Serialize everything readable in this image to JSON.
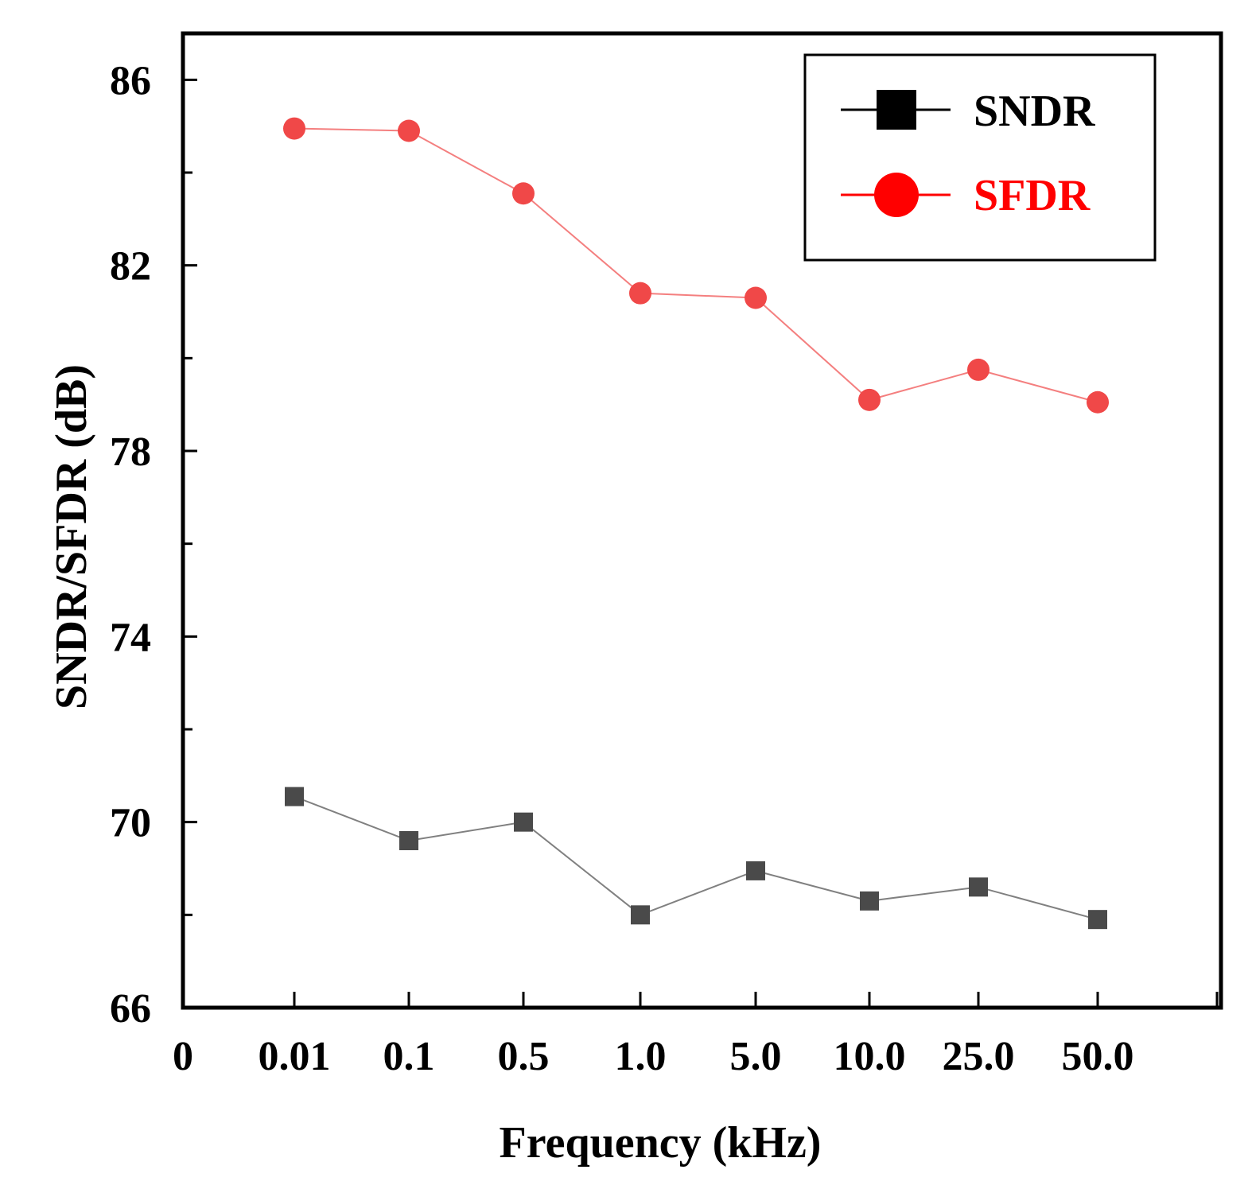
{
  "chart_data": {
    "type": "line",
    "title": "",
    "xlabel": "Frequency (kHz)",
    "ylabel": "SNDR/SFDR (dB)",
    "x_origin_label": "0",
    "categories": [
      "0.01",
      "0.1",
      "0.5",
      "1.0",
      "5.0",
      "10.0",
      "25.0",
      "50.0"
    ],
    "ylim": [
      66,
      87
    ],
    "yticks_major": [
      66,
      70,
      74,
      78,
      82,
      86
    ],
    "yticks_minor": [
      68,
      72,
      76,
      80,
      84
    ],
    "grid": false,
    "legend_position": "top-right",
    "series": [
      {
        "name": "SNDR",
        "color": "#4a4a4a",
        "legend_color": "#000000",
        "marker": "square",
        "values": [
          70.55,
          69.6,
          70.0,
          68.0,
          68.95,
          68.3,
          68.6,
          67.9
        ]
      },
      {
        "name": "SFDR",
        "color": "#f04848",
        "legend_color": "#ff0000",
        "marker": "circle",
        "values": [
          84.95,
          84.9,
          83.55,
          81.4,
          81.3,
          79.1,
          79.75,
          79.05
        ]
      }
    ]
  }
}
